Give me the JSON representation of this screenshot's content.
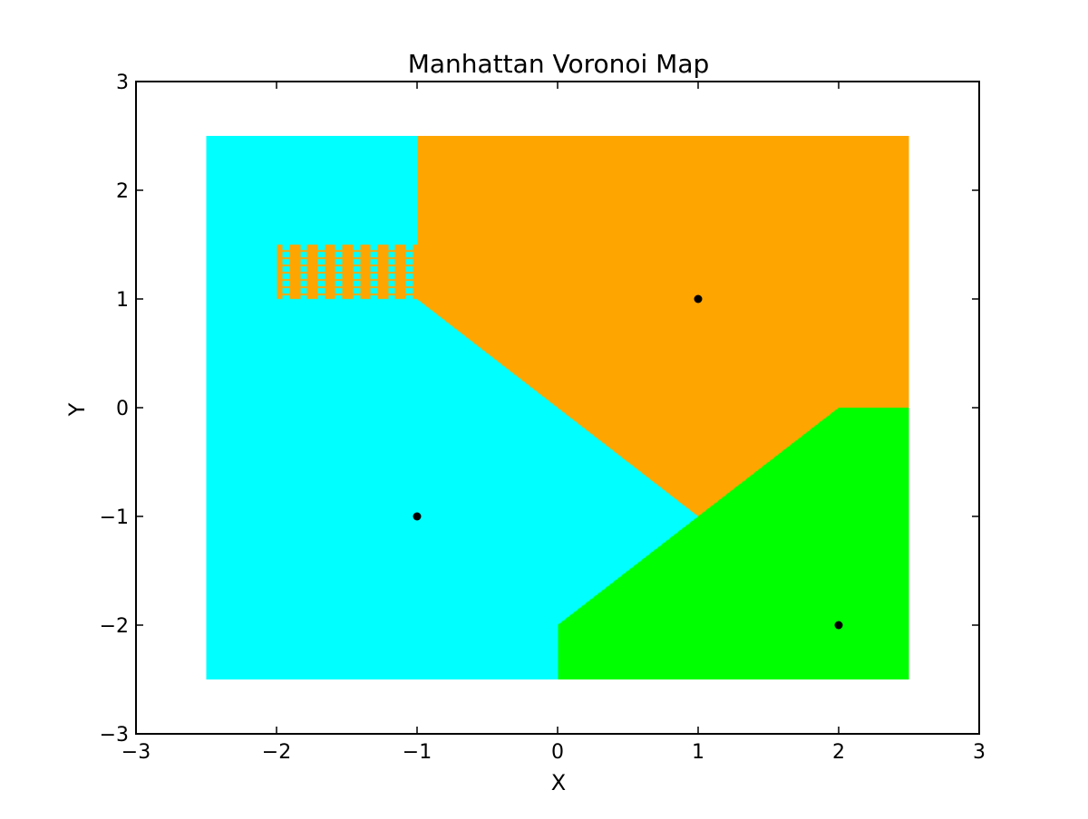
{
  "chart_data": {
    "type": "heatmap",
    "title": "Manhattan Voronoi Map",
    "xlabel": "X",
    "ylabel": "Y",
    "xlim": [
      -3,
      3
    ],
    "ylim": [
      -3,
      3
    ],
    "x_ticks": [
      -3,
      -2,
      -1,
      0,
      1,
      2,
      3
    ],
    "y_ticks": [
      -3,
      -2,
      -1,
      0,
      1,
      2,
      3
    ],
    "x_tick_labels": [
      "−3",
      "−2",
      "−1",
      "0",
      "1",
      "2",
      "3"
    ],
    "y_tick_labels": [
      "−3",
      "−2",
      "−1",
      "0",
      "1",
      "2",
      "3"
    ],
    "grid": false,
    "grid_extent": {
      "x": [
        -2.5,
        2.5
      ],
      "y": [
        -2.5,
        2.5
      ]
    },
    "metric": "manhattan",
    "sites": [
      {
        "x": -1,
        "y": -1,
        "region_color": "#00ffff"
      },
      {
        "x": 1,
        "y": 1,
        "region_color": "#ffa500"
      },
      {
        "x": 2,
        "y": -2,
        "region_color": "#00ff00"
      }
    ],
    "site_marker_color": "#000000",
    "tie_region": {
      "x": [
        -2,
        -1
      ],
      "y": [
        1,
        1.5
      ],
      "colors": [
        "#00ffff",
        "#ffa500"
      ]
    }
  }
}
